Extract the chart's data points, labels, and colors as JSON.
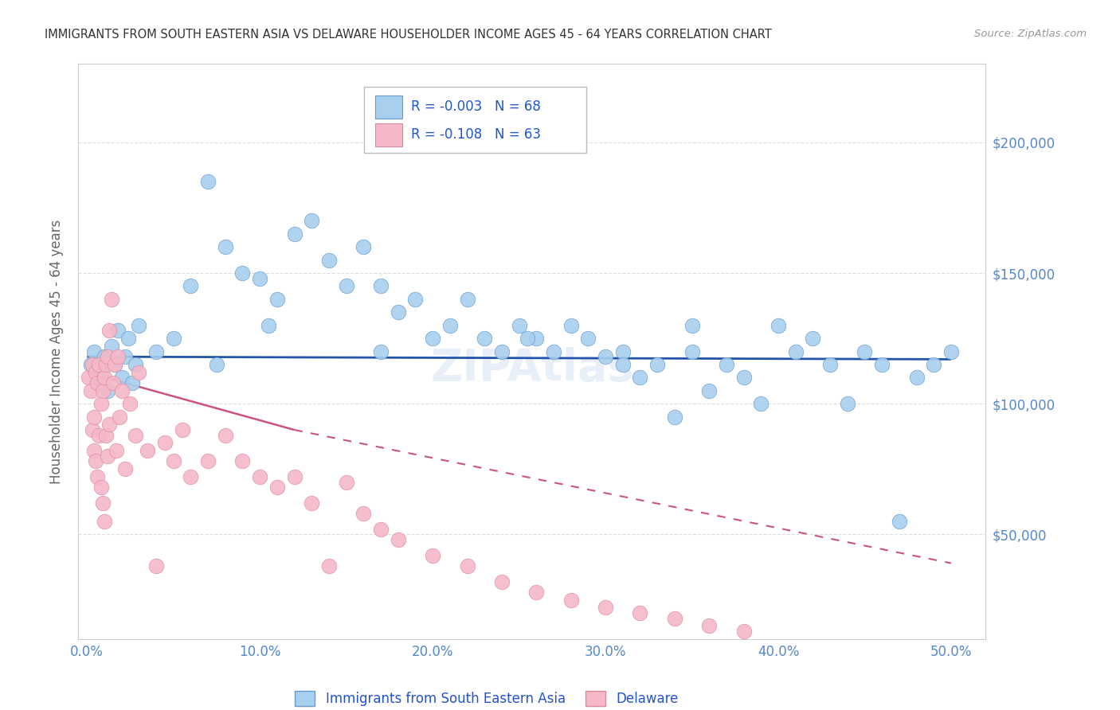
{
  "title": "IMMIGRANTS FROM SOUTH EASTERN ASIA VS DELAWARE HOUSEHOLDER INCOME AGES 45 - 64 YEARS CORRELATION CHART",
  "source": "Source: ZipAtlas.com",
  "ylabel": "Householder Income Ages 45 - 64 years",
  "xlim": [
    -0.005,
    0.52
  ],
  "ylim": [
    10000,
    230000
  ],
  "xticks": [
    0.0,
    0.1,
    0.2,
    0.3,
    0.4,
    0.5
  ],
  "xticklabels": [
    "0.0%",
    "10.0%",
    "20.0%",
    "30.0%",
    "40.0%",
    "50.0%"
  ],
  "yticks": [
    50000,
    100000,
    150000,
    200000
  ],
  "yticklabels": [
    "$50,000",
    "$100,000",
    "$150,000",
    "$200,000"
  ],
  "blue_color": "#A8CFEE",
  "blue_edge": "#6699CC",
  "pink_color": "#F5B8C8",
  "pink_edge": "#DD8899",
  "line_blue_color": "#2255AA",
  "line_pink_color": "#CC5577",
  "tick_color": "#5588CC",
  "grid_color": "#DDDDDD",
  "title_color": "#333333",
  "source_color": "#999999",
  "legend_text_color": "#2255CC",
  "R1": "-0.003",
  "N1": "68",
  "R2": "-0.108",
  "N2": "63",
  "blue_x": [
    0.002,
    0.004,
    0.006,
    0.008,
    0.01,
    0.012,
    0.014,
    0.016,
    0.018,
    0.02,
    0.022,
    0.024,
    0.026,
    0.028,
    0.03,
    0.04,
    0.05,
    0.06,
    0.07,
    0.08,
    0.09,
    0.1,
    0.11,
    0.12,
    0.13,
    0.14,
    0.15,
    0.16,
    0.17,
    0.18,
    0.19,
    0.2,
    0.21,
    0.22,
    0.23,
    0.24,
    0.25,
    0.26,
    0.27,
    0.28,
    0.29,
    0.3,
    0.31,
    0.32,
    0.33,
    0.34,
    0.35,
    0.36,
    0.37,
    0.38,
    0.39,
    0.4,
    0.41,
    0.42,
    0.43,
    0.44,
    0.45,
    0.46,
    0.47,
    0.48,
    0.49,
    0.5,
    0.35,
    0.31,
    0.255,
    0.17,
    0.105,
    0.075
  ],
  "blue_y": [
    115000,
    120000,
    108000,
    112000,
    118000,
    105000,
    122000,
    115000,
    128000,
    110000,
    118000,
    125000,
    108000,
    115000,
    130000,
    120000,
    125000,
    145000,
    185000,
    160000,
    150000,
    148000,
    140000,
    165000,
    170000,
    155000,
    145000,
    160000,
    145000,
    135000,
    140000,
    125000,
    130000,
    140000,
    125000,
    120000,
    130000,
    125000,
    120000,
    130000,
    125000,
    118000,
    120000,
    110000,
    115000,
    95000,
    120000,
    105000,
    115000,
    110000,
    100000,
    130000,
    120000,
    125000,
    115000,
    100000,
    120000,
    115000,
    55000,
    110000,
    115000,
    120000,
    130000,
    115000,
    125000,
    120000,
    130000,
    115000
  ],
  "pink_x": [
    0.001,
    0.002,
    0.003,
    0.003,
    0.004,
    0.004,
    0.005,
    0.005,
    0.006,
    0.006,
    0.007,
    0.007,
    0.008,
    0.008,
    0.009,
    0.009,
    0.01,
    0.01,
    0.011,
    0.011,
    0.012,
    0.012,
    0.013,
    0.013,
    0.014,
    0.015,
    0.016,
    0.017,
    0.018,
    0.019,
    0.02,
    0.022,
    0.025,
    0.028,
    0.03,
    0.035,
    0.04,
    0.045,
    0.05,
    0.055,
    0.06,
    0.07,
    0.08,
    0.09,
    0.1,
    0.11,
    0.12,
    0.13,
    0.14,
    0.15,
    0.16,
    0.17,
    0.18,
    0.2,
    0.22,
    0.24,
    0.26,
    0.28,
    0.3,
    0.32,
    0.34,
    0.36,
    0.38
  ],
  "pink_y": [
    110000,
    105000,
    115000,
    90000,
    95000,
    82000,
    112000,
    78000,
    108000,
    72000,
    115000,
    88000,
    100000,
    68000,
    105000,
    62000,
    110000,
    55000,
    115000,
    88000,
    80000,
    118000,
    128000,
    92000,
    140000,
    108000,
    115000,
    82000,
    118000,
    95000,
    105000,
    75000,
    100000,
    88000,
    112000,
    82000,
    38000,
    85000,
    78000,
    90000,
    72000,
    78000,
    88000,
    78000,
    72000,
    68000,
    72000,
    62000,
    38000,
    70000,
    58000,
    52000,
    48000,
    42000,
    38000,
    32000,
    28000,
    25000,
    22000,
    20000,
    18000,
    15000,
    13000
  ]
}
